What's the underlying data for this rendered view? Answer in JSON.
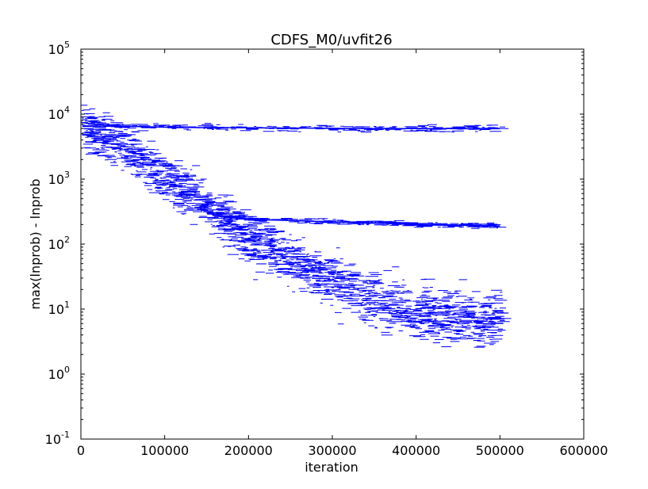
{
  "chart_data": {
    "type": "scatter",
    "title": "CDFS_M0/uvfit26",
    "xlabel": "iteration",
    "ylabel": "max(lnprob) - lnprob",
    "xlim": [
      0,
      600000
    ],
    "ylim": [
      0.1,
      100000
    ],
    "yscale": "log",
    "grid": false,
    "series_color": "#0000ff",
    "xticks": [
      {
        "value": 0,
        "label": "0"
      },
      {
        "value": 100000,
        "label": "100000"
      },
      {
        "value": 200000,
        "label": "200000"
      },
      {
        "value": 300000,
        "label": "300000"
      },
      {
        "value": 400000,
        "label": "400000"
      },
      {
        "value": 500000,
        "label": "500000"
      },
      {
        "value": 600000,
        "label": "600000"
      }
    ],
    "yticks": [
      {
        "value": 0.1,
        "base": "10",
        "exp": "-1"
      },
      {
        "value": 1,
        "base": "10",
        "exp": "0"
      },
      {
        "value": 10,
        "base": "10",
        "exp": "1"
      },
      {
        "value": 100,
        "base": "10",
        "exp": "2"
      },
      {
        "value": 1000,
        "base": "10",
        "exp": "3"
      },
      {
        "value": 10000,
        "base": "10",
        "exp": "4"
      },
      {
        "value": 100000,
        "base": "10",
        "exp": "5"
      }
    ],
    "series": [
      {
        "description_key": "upper-plateau",
        "x": [
          0,
          20000,
          50000,
          100000,
          150000,
          200000,
          250000,
          300000,
          350000,
          400000,
          450000,
          500000
        ],
        "y": [
          7500,
          6800,
          6500,
          6300,
          6200,
          6150,
          6100,
          6050,
          6000,
          6000,
          6000,
          6000
        ],
        "spread": 0.05
      },
      {
        "description_key": "middle-plateau",
        "x": [
          150000,
          175000,
          200000,
          250000,
          300000,
          350000,
          400000,
          450000,
          500000
        ],
        "y": [
          300,
          260,
          240,
          230,
          220,
          210,
          200,
          195,
          190
        ],
        "spread": 0.04
      },
      {
        "description_key": "main-band",
        "x": [
          0,
          25000,
          50000,
          75000,
          100000,
          125000,
          150000,
          175000,
          200000,
          225000,
          250000,
          275000,
          300000,
          325000,
          350000,
          375000,
          400000,
          425000,
          450000,
          475000,
          500000
        ],
        "y": [
          7000,
          4500,
          3000,
          1800,
          1000,
          600,
          350,
          200,
          110,
          80,
          55,
          40,
          25,
          18,
          14,
          11,
          9,
          8,
          7.5,
          7,
          7
        ],
        "spread": 0.35
      }
    ]
  }
}
